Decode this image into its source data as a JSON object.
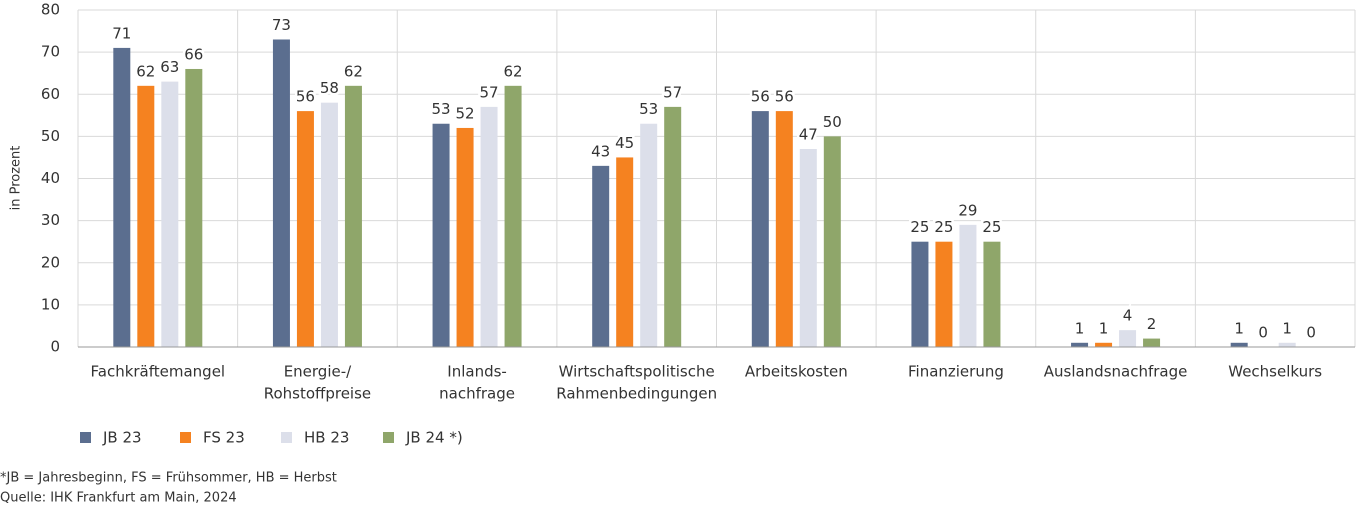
{
  "chart_data": {
    "type": "bar",
    "ylabel": "in Prozent",
    "categories": [
      [
        "Fachkräftemangel"
      ],
      [
        "Energie-/",
        "Rohstoffpreise"
      ],
      [
        "Inlands-",
        "nachfrage"
      ],
      [
        "Wirtschaftspolitische",
        "Rahmenbedingungen"
      ],
      [
        "Arbeitskosten"
      ],
      [
        "Finanzierung"
      ],
      [
        "Auslandsnachfrage"
      ],
      [
        "Wechselkurs"
      ]
    ],
    "series": [
      {
        "name": "JB 23",
        "color": "#5b6e8f",
        "values": [
          71,
          73,
          53,
          43,
          56,
          25,
          1,
          1
        ]
      },
      {
        "name": "FS 23",
        "color": "#f58220",
        "values": [
          62,
          56,
          52,
          45,
          56,
          25,
          1,
          0
        ]
      },
      {
        "name": "HB 23",
        "color": "#dcdfea",
        "values": [
          63,
          58,
          57,
          53,
          47,
          29,
          4,
          1
        ]
      },
      {
        "name": "JB 24 *)",
        "color": "#8fa66a",
        "values": [
          66,
          62,
          62,
          57,
          50,
          25,
          2,
          0
        ]
      }
    ],
    "ylim": [
      0,
      80
    ],
    "yticks": [
      0,
      10,
      20,
      30,
      40,
      50,
      60,
      70,
      80
    ],
    "grid": true,
    "footnotes": [
      "*JB = Jahresbeginn, FS = Frühsommer, HB = Herbst",
      "Quelle: IHK Frankfurt am Main, 2024"
    ]
  }
}
